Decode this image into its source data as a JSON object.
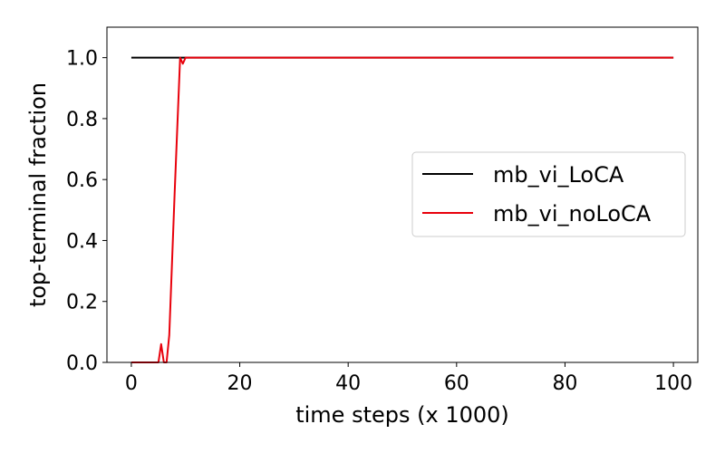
{
  "chart_data": {
    "type": "line",
    "title": "",
    "xlabel": "time steps (x 1000)",
    "ylabel": "top-terminal fraction",
    "xlim": [
      -4.5,
      104.5
    ],
    "ylim": [
      0.0,
      1.1
    ],
    "xticks": [
      0,
      20,
      40,
      60,
      80,
      100
    ],
    "yticks": [
      0.0,
      0.2,
      0.4,
      0.6,
      0.8,
      1.0
    ],
    "xtick_labels": [
      "0",
      "20",
      "40",
      "60",
      "80",
      "100"
    ],
    "ytick_labels": [
      "0.0",
      "0.2",
      "0.4",
      "0.6",
      "0.8",
      "1.0"
    ],
    "grid": false,
    "legend_position": "center-right",
    "series": [
      {
        "name": "mb_vi_LoCA",
        "color": "#000000",
        "x": [
          0,
          100
        ],
        "y": [
          1.0,
          1.0
        ]
      },
      {
        "name": "mb_vi_noLoCA",
        "color": "#e8000b",
        "x": [
          0,
          1,
          2,
          3,
          4,
          5,
          5.5,
          6,
          6.5,
          7,
          8,
          9,
          9.5,
          10,
          11,
          100
        ],
        "y": [
          0.0,
          0.0,
          0.0,
          0.0,
          0.0,
          0.0,
          0.06,
          0.0,
          0.0,
          0.09,
          0.56,
          1.0,
          0.98,
          1.0,
          1.0,
          1.0
        ]
      }
    ]
  }
}
